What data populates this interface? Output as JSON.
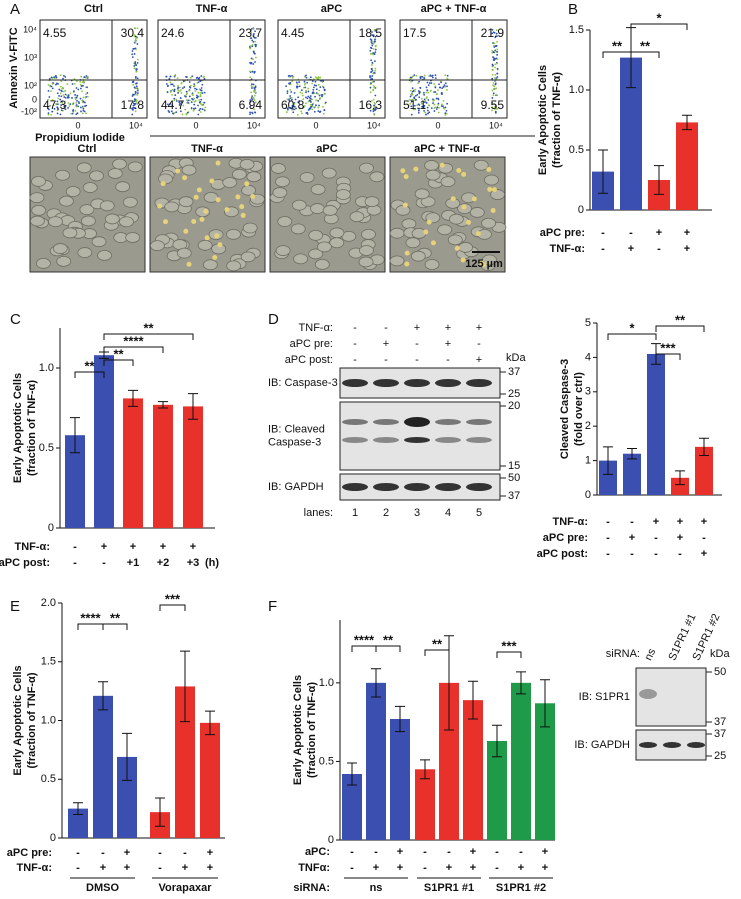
{
  "panels": [
    "A",
    "B",
    "C",
    "D",
    "E",
    "F"
  ],
  "flow": {
    "y_label": "Annexin V-FITC",
    "x_label": "Propidium Iodide",
    "y_ticks": [
      "10⁴",
      "10³",
      "10²",
      "0",
      "-10²"
    ],
    "x_ticks": [
      "0",
      "10⁴"
    ],
    "plots": [
      {
        "title": "Ctrl",
        "quadrants": [
          "4.55",
          "30.4",
          "47.3",
          "17.8"
        ]
      },
      {
        "title": "TNF-α",
        "quadrants": [
          "24.6",
          "23.7",
          "44.7",
          "6.94"
        ]
      },
      {
        "title": "aPC",
        "quadrants": [
          "4.45",
          "18.5",
          "60.8",
          "16.3"
        ]
      },
      {
        "title": "aPC + TNF-α",
        "quadrants": [
          "17.5",
          "21.9",
          "51.1",
          "9.55"
        ]
      }
    ]
  },
  "micrographs": {
    "titles": [
      "Ctrl",
      "TNF-α",
      "aPC",
      "aPC + TNF-α"
    ],
    "scale_bar": "125 µm"
  },
  "blot_d": {
    "rows": [
      {
        "label": "TNF-α:",
        "values": [
          "-",
          "-",
          "+",
          "+",
          "+"
        ]
      },
      {
        "label": "aPC pre:",
        "values": [
          "-",
          "+",
          "-",
          "+",
          "-"
        ]
      },
      {
        "label": "aPC post:",
        "values": [
          "-",
          "-",
          "-",
          "-",
          "+"
        ]
      }
    ],
    "kda": "kDa",
    "bands": [
      {
        "label": [
          "IB: Caspase-3"
        ],
        "markers": [
          "37",
          "25"
        ]
      },
      {
        "label": [
          "IB: Cleaved",
          "Caspase-3"
        ],
        "markers": [
          "20",
          "15"
        ]
      },
      {
        "label": [
          "IB: GAPDH"
        ],
        "markers": [
          "50",
          "37"
        ]
      }
    ],
    "lanes_label": "lanes:",
    "lanes": [
      "1",
      "2",
      "3",
      "4",
      "5"
    ]
  },
  "blot_f": {
    "header": "siRNA:",
    "lanes": [
      "ns",
      "S1PR1 #1",
      "S1PR1 #2"
    ],
    "kda": "kDa",
    "bands": [
      {
        "label": "IB: S1PR1",
        "markers": [
          "50",
          "37"
        ]
      },
      {
        "label": "IB: GAPDH",
        "markers": [
          "37",
          "25"
        ]
      }
    ]
  },
  "chart_data": [
    {
      "type": "bar",
      "ylabel": [
        "Early Apoptotic Cells",
        "(fraction of TNF-α)"
      ],
      "values": [
        0.32,
        1.27,
        0.25,
        0.73
      ],
      "errors": [
        0.18,
        0.25,
        0.12,
        0.06
      ],
      "colors": [
        "#3a4fb0",
        "#3a4fb0",
        "#e8312a",
        "#e8312a"
      ],
      "ylim": [
        0,
        1.5
      ],
      "yticks": [
        0,
        0.5,
        {
          "value": 1,
          "label": "1.0"
        },
        1.5
      ],
      "conditions": [
        {
          "label": "aPC pre:",
          "values": [
            "-",
            "-",
            "+",
            "+"
          ]
        },
        {
          "label": "TNF-α:",
          "values": [
            "-",
            "+",
            "-",
            "+"
          ]
        }
      ],
      "significance": [
        "**",
        "**",
        "*"
      ]
    },
    {
      "type": "bar",
      "ylabel": [
        "Early Apoptotic Cells",
        "(fraction of TNF-α)"
      ],
      "values": [
        0.58,
        1.08,
        0.81,
        0.77,
        0.76
      ],
      "errors": [
        0.11,
        0.02,
        0.05,
        0.02,
        0.08
      ],
      "colors": [
        "#3a4fb0",
        "#3a4fb0",
        "#e8312a",
        "#e8312a",
        "#e8312a"
      ],
      "ylim": [
        0,
        1.25
      ],
      "yticks": [
        0,
        0.5,
        {
          "value": 1,
          "label": "1.0"
        }
      ],
      "conditions": [
        {
          "label": "TNF-α:",
          "values": [
            "-",
            "+",
            "+",
            "+",
            "+"
          ]
        },
        {
          "label": "aPC post:",
          "values": [
            "-",
            "-",
            "+1",
            "+2",
            "+3"
          ],
          "note": "(h)"
        }
      ],
      "significance": [
        "**",
        "**",
        "****",
        "**"
      ]
    },
    {
      "type": "bar",
      "ylabel": [
        "Cleaved Caspase-3",
        "(fold over ctrl)"
      ],
      "values": [
        1.0,
        1.2,
        4.1,
        0.5,
        1.4
      ],
      "errors": [
        0.4,
        0.15,
        0.3,
        0.2,
        0.25
      ],
      "colors": [
        "#3a4fb0",
        "#3a4fb0",
        "#3a4fb0",
        "#e8312a",
        "#e8312a"
      ],
      "ylim": [
        0,
        5
      ],
      "yticks": [
        0,
        1,
        2,
        3,
        4,
        5
      ],
      "conditions": [
        {
          "label": "TNF-α:",
          "values": [
            "-",
            "-",
            "+",
            "+",
            "+"
          ]
        },
        {
          "label": "aPC pre:",
          "values": [
            "-",
            "+",
            "-",
            "+",
            "-"
          ]
        },
        {
          "label": "aPC post:",
          "values": [
            "-",
            "-",
            "-",
            "-",
            "+"
          ]
        }
      ],
      "significance": [
        "*",
        "***",
        "**"
      ]
    },
    {
      "type": "bar",
      "ylabel": [
        "Early Apoptotic Cells",
        "(fraction of TNF-α)"
      ],
      "values": [
        0.25,
        1.21,
        0.69,
        0.22,
        1.29,
        0.98
      ],
      "errors": [
        0.05,
        0.12,
        0.2,
        0.12,
        0.3,
        0.1
      ],
      "colors": [
        "#3a4fb0",
        "#3a4fb0",
        "#3a4fb0",
        "#e8312a",
        "#e8312a",
        "#e8312a"
      ],
      "ylim": [
        0,
        2
      ],
      "yticks": [
        0,
        0.5,
        {
          "value": 1,
          "label": "1.0"
        },
        1.5,
        {
          "value": 2,
          "label": "2.0"
        }
      ],
      "conditions": [
        {
          "label": "aPC pre:",
          "values": [
            "-",
            "-",
            "+",
            "-",
            "-",
            "+"
          ]
        },
        {
          "label": "TNF-α:",
          "values": [
            "-",
            "+",
            "+",
            "-",
            "+",
            "+"
          ]
        }
      ],
      "groups": [
        "DMSO",
        "Vorapaxar"
      ],
      "significance": [
        "****",
        "**",
        "***"
      ]
    },
    {
      "type": "bar",
      "ylabel": [
        "Early Apoptotic Cells",
        "(fraction of TNF-α)"
      ],
      "values": [
        0.42,
        1.0,
        0.77,
        0.45,
        1.0,
        0.89,
        0.63,
        1.0,
        0.87
      ],
      "errors": [
        0.07,
        0.09,
        0.08,
        0.06,
        0.3,
        0.12,
        0.1,
        0.07,
        0.15
      ],
      "colors": [
        "#3a4fb0",
        "#3a4fb0",
        "#3a4fb0",
        "#e8312a",
        "#e8312a",
        "#e8312a",
        "#1f9a48",
        "#1f9a48",
        "#1f9a48"
      ],
      "ylim": [
        0,
        1.4
      ],
      "yticks": [
        0,
        0.5,
        {
          "value": 1,
          "label": "1.0"
        }
      ],
      "conditions": [
        {
          "label": "aPC:",
          "values": [
            "-",
            "-",
            "+",
            "-",
            "-",
            "+",
            "-",
            "-",
            "+"
          ]
        },
        {
          "label": "TNFα:",
          "values": [
            "-",
            "+",
            "+",
            "-",
            "+",
            "+",
            "-",
            "+",
            "+"
          ]
        }
      ],
      "group_label": "siRNA:",
      "groups": [
        "ns",
        "S1PR1 #1",
        "S1PR1 #2"
      ],
      "significance": [
        "****",
        "**",
        "**",
        "***"
      ]
    }
  ]
}
